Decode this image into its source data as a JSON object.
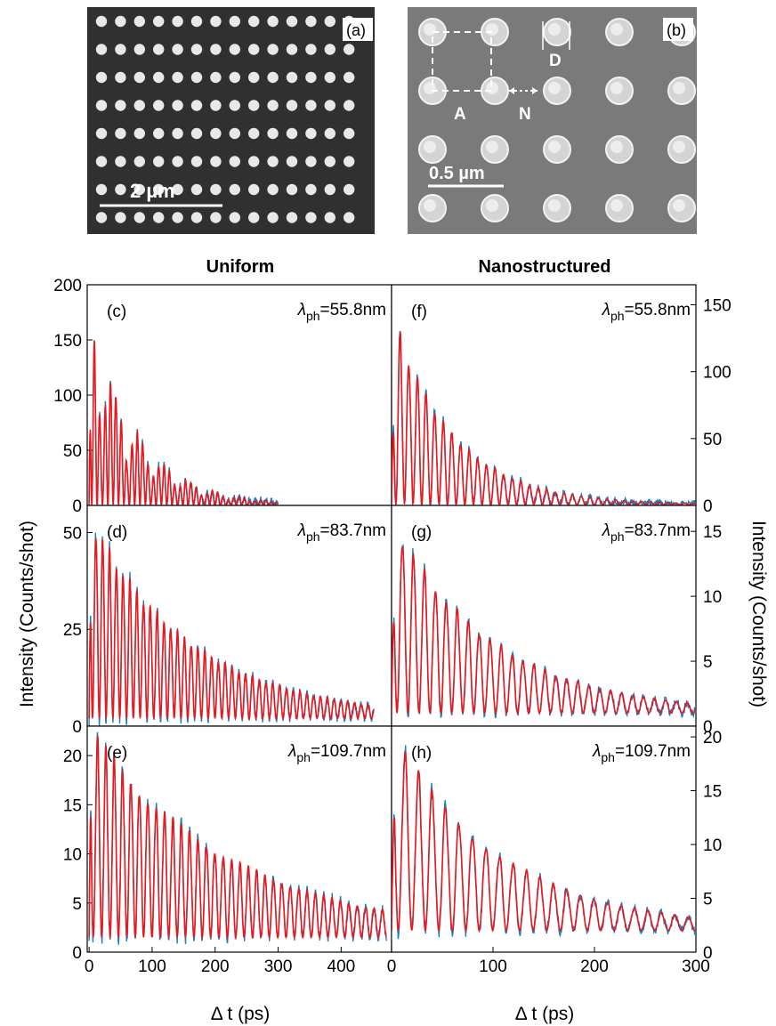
{
  "sem": {
    "a": {
      "panel_label": "(a)",
      "scale_label": "2 µm",
      "rows": 8,
      "cols": 14
    },
    "b": {
      "panel_label": "(b)",
      "scale_label": "0.5 µm",
      "label_A": "A",
      "label_N": "N",
      "label_D": "D",
      "rows": 4,
      "cols": 5
    }
  },
  "column_titles": {
    "left": "Uniform",
    "right": "Nanostructured"
  },
  "axis_labels": {
    "left_y": "Intensity (Counts/shot)",
    "right_y": "Intensity (Counts/shot)",
    "x_left": "Δ t (ps)",
    "x_right": "Δ t (ps)"
  },
  "colors": {
    "fit": "#e8191e",
    "data": "#1b7fc1",
    "sem_bg_a": "#303030",
    "sem_bg_b": "#7a7a7a"
  },
  "chart_data": [
    {
      "id": "c",
      "panel_label": "(c)",
      "type": "line",
      "lambda": "55.8nm",
      "lambda_prefix": "λ",
      "lambda_sub": "ph",
      "lambda_value": "=55.8nm",
      "xlim": [
        -3,
        480
      ],
      "ylim": [
        0,
        200
      ],
      "yticks": [
        0,
        50,
        100,
        150,
        200
      ],
      "xticks": [],
      "x_end": 300,
      "peak": 190,
      "period": 8.5,
      "decay": 75,
      "beat_period": 40,
      "beat_depth": 0.55,
      "floor": 0.3,
      "series": [
        {
          "name": "",
          "role": "data"
        },
        {
          "name": "",
          "role": "fit"
        }
      ]
    },
    {
      "id": "d",
      "panel_label": "(d)",
      "type": "line",
      "lambda": "83.7nm",
      "lambda_prefix": "λ",
      "lambda_sub": "ph",
      "lambda_value": "=83.7nm",
      "xlim": [
        -3,
        480
      ],
      "ylim": [
        0,
        57
      ],
      "yticks": [
        0,
        25,
        50
      ],
      "xticks": [],
      "x_end": 452,
      "peak": 54,
      "period": 10.8,
      "decay": 165,
      "beat_period": 0,
      "beat_depth": 0,
      "floor": 2.0,
      "series": [
        {
          "name": "",
          "role": "data"
        },
        {
          "name": "",
          "role": "fit"
        }
      ]
    },
    {
      "id": "e",
      "panel_label": "(e)",
      "type": "line",
      "lambda": "109.7nm",
      "lambda_prefix": "λ",
      "lambda_sub": "ph",
      "lambda_value": "=109.7nm",
      "xlim": [
        -3,
        480
      ],
      "ylim": [
        0,
        23
      ],
      "yticks": [
        0,
        5,
        10,
        15,
        20
      ],
      "xticks": [
        0,
        100,
        200,
        300,
        400
      ],
      "x_end": 472,
      "peak": 22,
      "period": 13.3,
      "decay": 230,
      "beat_period": 0,
      "beat_depth": 0,
      "floor": 1.5,
      "series": [
        {
          "name": "",
          "role": "data"
        },
        {
          "name": "",
          "role": "fit"
        }
      ]
    },
    {
      "id": "f",
      "panel_label": "(f)",
      "type": "line",
      "lambda": "55.8nm",
      "lambda_prefix": "λ",
      "lambda_sub": "ph",
      "lambda_value": "=55.8nm",
      "xlim": [
        0,
        300
      ],
      "ylim": [
        0,
        165
      ],
      "yticks": [
        0,
        50,
        100,
        150
      ],
      "xticks": [],
      "x_end": 300,
      "peak": 150,
      "period": 8.5,
      "decay": 60,
      "beat_period": 0,
      "beat_depth": 0,
      "floor": 0.5,
      "series": [
        {
          "name": "",
          "role": "data"
        },
        {
          "name": "",
          "role": "fit"
        }
      ]
    },
    {
      "id": "g",
      "panel_label": "(g)",
      "type": "line",
      "lambda": "83.7nm",
      "lambda_prefix": "λ",
      "lambda_sub": "ph",
      "lambda_value": "=83.7nm",
      "xlim": [
        0,
        300
      ],
      "ylim": [
        0,
        17
      ],
      "yticks": [
        0,
        5,
        10,
        15
      ],
      "xticks": [],
      "x_end": 300,
      "peak": 15.5,
      "period": 10.8,
      "decay": 100,
      "beat_period": 0,
      "beat_depth": 0,
      "floor": 1.0,
      "series": [
        {
          "name": "",
          "role": "data"
        },
        {
          "name": "",
          "role": "fit"
        }
      ]
    },
    {
      "id": "h",
      "panel_label": "(h)",
      "type": "line",
      "lambda": "109.7nm",
      "lambda_prefix": "λ",
      "lambda_sub": "ph",
      "lambda_value": "=109.7nm",
      "xlim": [
        0,
        300
      ],
      "ylim": [
        0,
        21
      ],
      "yticks": [
        0,
        5,
        10,
        15,
        20
      ],
      "xticks": [
        0,
        100,
        200,
        300
      ],
      "x_end": 300,
      "peak": 19,
      "period": 13.3,
      "decay": 110,
      "beat_period": 0,
      "beat_depth": 0,
      "floor": 2.0,
      "series": [
        {
          "name": "",
          "role": "data"
        },
        {
          "name": "",
          "role": "fit"
        }
      ]
    }
  ]
}
